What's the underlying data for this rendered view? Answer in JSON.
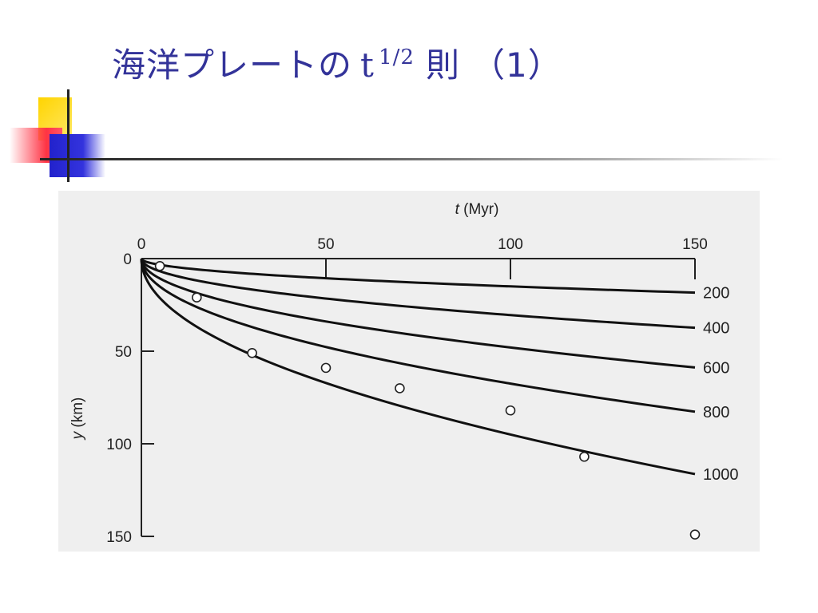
{
  "slide": {
    "title_main": "海洋プレートの",
    "title_t": "t",
    "title_exp": "1/2",
    "title_rule": "則",
    "title_num": "（1）",
    "accent_color": "#333399"
  },
  "chart_data": {
    "type": "line",
    "title": "",
    "xlabel_italic": "t",
    "xlabel_unit": "(Myr)",
    "ylabel_italic": "y",
    "ylabel_unit": "(km)",
    "xlim": [
      0,
      150
    ],
    "ylim": [
      0,
      150
    ],
    "y_inverted": true,
    "x_axis_position": "top",
    "x_ticks": [
      0,
      50,
      100,
      150
    ],
    "y_ticks": [
      0,
      50,
      100,
      150
    ],
    "series": [
      {
        "name": "200",
        "coefficient": 1.5
      },
      {
        "name": "400",
        "coefficient": 3.05
      },
      {
        "name": "600",
        "coefficient": 4.8
      },
      {
        "name": "800",
        "coefficient": 6.75
      },
      {
        "name": "1000",
        "coefficient": 9.5
      }
    ],
    "points": [
      {
        "x": 5,
        "y": 4
      },
      {
        "x": 15,
        "y": 21
      },
      {
        "x": 30,
        "y": 51
      },
      {
        "x": 50,
        "y": 59
      },
      {
        "x": 70,
        "y": 70
      },
      {
        "x": 100,
        "y": 82
      },
      {
        "x": 120,
        "y": 107
      },
      {
        "x": 150,
        "y": 149
      }
    ],
    "grid": false
  }
}
